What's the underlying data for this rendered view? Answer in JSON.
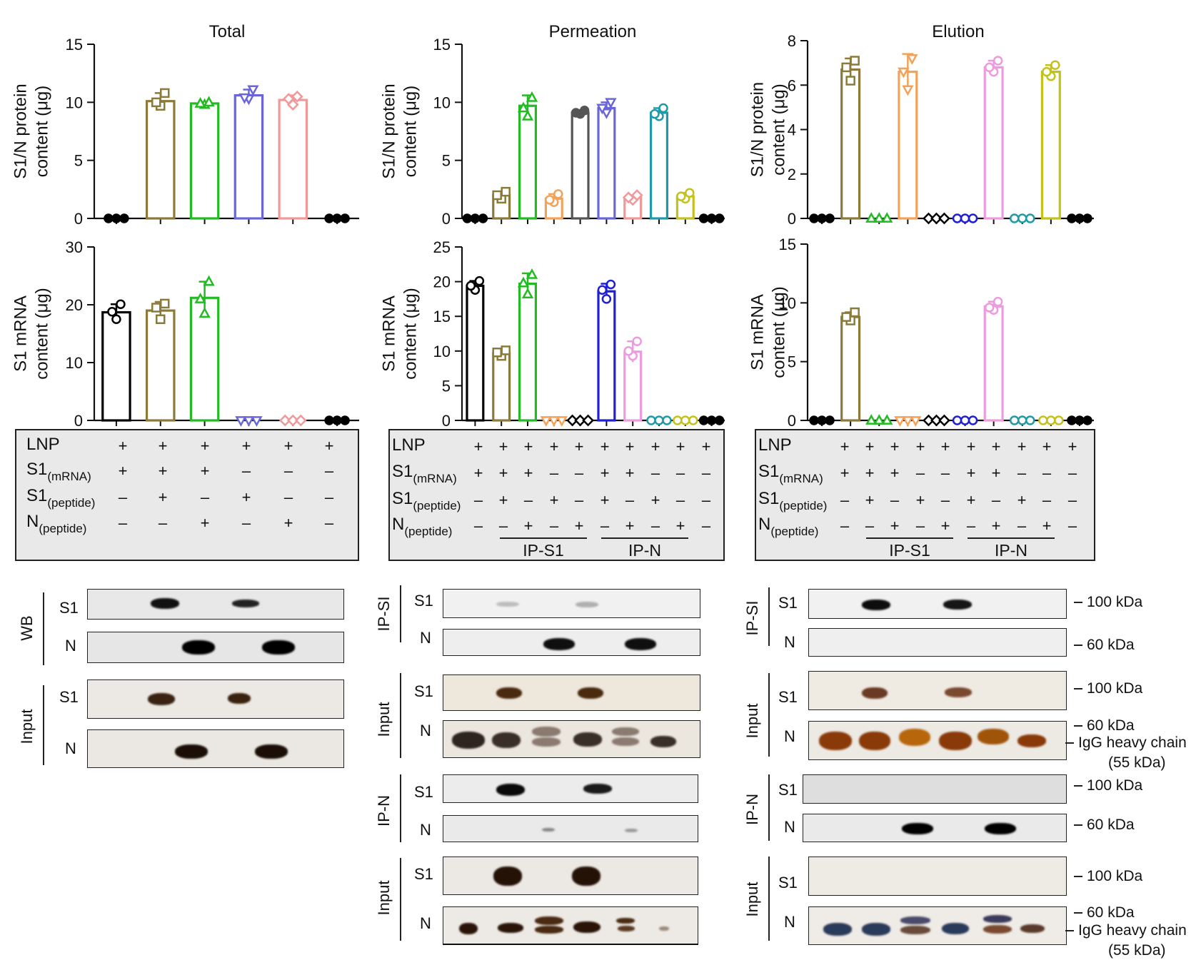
{
  "chart_data": [
    {
      "type": "bar",
      "id": "total-protein",
      "title": "Total",
      "ylabel_lines": [
        "S1/N protein",
        "content (μg)"
      ],
      "ylim": [
        0,
        15
      ],
      "yticks": [
        0,
        5,
        10,
        15
      ],
      "bars": [
        {
          "value": 0,
          "points": [
            0,
            0,
            0
          ],
          "color": "#000000",
          "marker": "circle"
        },
        {
          "value": 10.1,
          "points": [
            9.7,
            10.0,
            10.8
          ],
          "color": "#8b7a3a",
          "marker": "square"
        },
        {
          "value": 9.9,
          "points": [
            9.8,
            9.9,
            10.0
          ],
          "color": "#22bb22",
          "marker": "triangle"
        },
        {
          "value": 10.6,
          "points": [
            10.3,
            10.4,
            11.1
          ],
          "color": "#6a66d8",
          "marker": "triangle-down"
        },
        {
          "value": 10.2,
          "points": [
            9.8,
            10.3,
            10.5
          ],
          "color": "#f19898",
          "marker": "diamond"
        },
        {
          "value": 0,
          "points": [
            0,
            0,
            0
          ],
          "color": "#000000",
          "marker": "circle"
        }
      ]
    },
    {
      "type": "bar",
      "id": "total-mrna",
      "title": "",
      "ylabel_lines": [
        "S1 mRNA",
        "content (μg)"
      ],
      "ylim": [
        0,
        30
      ],
      "yticks": [
        0,
        10,
        20,
        30
      ],
      "bars": [
        {
          "value": 18.7,
          "points": [
            17.5,
            18.8,
            20.1
          ],
          "color": "#000000",
          "marker": "circle"
        },
        {
          "value": 19.0,
          "points": [
            17.5,
            19.5,
            20.2
          ],
          "color": "#8b7a3a",
          "marker": "square"
        },
        {
          "value": 21.2,
          "points": [
            18.5,
            21.0,
            24.0
          ],
          "color": "#22bb22",
          "marker": "triangle"
        },
        {
          "value": 0,
          "points": [
            0,
            0,
            0
          ],
          "color": "#6a66d8",
          "marker": "triangle-down"
        },
        {
          "value": 0,
          "points": [
            0,
            0,
            0
          ],
          "color": "#f19898",
          "marker": "diamond"
        },
        {
          "value": 0,
          "points": [
            0,
            0,
            0
          ],
          "color": "#000000",
          "marker": "circle"
        }
      ]
    },
    {
      "type": "bar",
      "id": "perm-protein",
      "title": "Permeation",
      "ylabel_lines": [
        "S1/N protein",
        "content (μg)"
      ],
      "ylim": [
        0,
        15
      ],
      "yticks": [
        0,
        5,
        10,
        15
      ],
      "bars": [
        {
          "value": 0,
          "points": [
            0,
            0,
            0
          ],
          "color": "#000000",
          "marker": "circle"
        },
        {
          "value": 2.0,
          "points": [
            1.7,
            2.0,
            2.3
          ],
          "color": "#8b7a3a",
          "marker": "square"
        },
        {
          "value": 9.7,
          "points": [
            8.8,
            9.5,
            10.4
          ],
          "color": "#22bb22",
          "marker": "triangle"
        },
        {
          "value": 1.7,
          "points": [
            1.4,
            1.6,
            2.1
          ],
          "color": "#f4a259",
          "marker": "circle"
        },
        {
          "value": 9.1,
          "points": [
            9.0,
            9.1,
            9.3
          ],
          "color": "#555555",
          "marker": "circle-filled"
        },
        {
          "value": 9.5,
          "points": [
            9.1,
            9.5,
            10.0
          ],
          "color": "#6a66d8",
          "marker": "triangle-down"
        },
        {
          "value": 1.8,
          "points": [
            1.6,
            1.8,
            2.0
          ],
          "color": "#f19898",
          "marker": "diamond"
        },
        {
          "value": 9.1,
          "points": [
            8.8,
            9.0,
            9.5
          ],
          "color": "#1f9aa8",
          "marker": "circle"
        },
        {
          "value": 1.9,
          "points": [
            1.7,
            1.9,
            2.2
          ],
          "color": "#c4c21a",
          "marker": "circle"
        },
        {
          "value": 0,
          "points": [
            0,
            0,
            0
          ],
          "color": "#000000",
          "marker": "circle"
        }
      ]
    },
    {
      "type": "bar",
      "id": "perm-mrna",
      "title": "",
      "ylabel_lines": [
        "S1 mRNA",
        "content (μg)"
      ],
      "ylim": [
        0,
        25
      ],
      "yticks": [
        0,
        5,
        10,
        15,
        20,
        25
      ],
      "bars": [
        {
          "value": 19.4,
          "points": [
            18.8,
            19.4,
            20.1
          ],
          "color": "#000000",
          "marker": "circle"
        },
        {
          "value": 9.7,
          "points": [
            9.3,
            9.8,
            10.1
          ],
          "color": "#8b7a3a",
          "marker": "square"
        },
        {
          "value": 19.7,
          "points": [
            18.2,
            19.8,
            21.0
          ],
          "color": "#22bb22",
          "marker": "triangle"
        },
        {
          "value": 0,
          "points": [
            0,
            0,
            0
          ],
          "color": "#f4a259",
          "marker": "triangle-down"
        },
        {
          "value": 0,
          "points": [
            0,
            0,
            0
          ],
          "color": "#000000",
          "marker": "diamond"
        },
        {
          "value": 18.6,
          "points": [
            17.5,
            18.8,
            19.6
          ],
          "color": "#1f1fd6",
          "marker": "circle"
        },
        {
          "value": 9.9,
          "points": [
            9.3,
            10.0,
            11.4
          ],
          "color": "#ee9adf",
          "marker": "circle"
        },
        {
          "value": 0,
          "points": [
            0,
            0,
            0
          ],
          "color": "#1f9aa8",
          "marker": "circle"
        },
        {
          "value": 0,
          "points": [
            0,
            0,
            0
          ],
          "color": "#c4c21a",
          "marker": "circle"
        },
        {
          "value": 0,
          "points": [
            0,
            0,
            0
          ],
          "color": "#000000",
          "marker": "circle"
        }
      ]
    },
    {
      "type": "bar",
      "id": "elution-protein",
      "title": "Elution",
      "ylabel_lines": [
        "S1/N protein",
        "content (μg)"
      ],
      "ylim": [
        0,
        8
      ],
      "yticks": [
        0,
        2,
        4,
        6,
        8
      ],
      "bars": [
        {
          "value": 0,
          "points": [
            0,
            0,
            0
          ],
          "color": "#000000",
          "marker": "circle"
        },
        {
          "value": 6.7,
          "points": [
            6.2,
            6.8,
            7.1
          ],
          "color": "#8b7a3a",
          "marker": "square"
        },
        {
          "value": 0,
          "points": [
            0,
            0,
            0
          ],
          "color": "#22bb22",
          "marker": "triangle"
        },
        {
          "value": 6.6,
          "points": [
            5.8,
            6.6,
            7.2
          ],
          "color": "#f4a259",
          "marker": "triangle-down"
        },
        {
          "value": 0,
          "points": [
            0,
            0,
            0
          ],
          "color": "#000000",
          "marker": "diamond"
        },
        {
          "value": 0,
          "points": [
            0,
            0,
            0
          ],
          "color": "#1f1fd6",
          "marker": "circle"
        },
        {
          "value": 6.8,
          "points": [
            6.6,
            6.8,
            7.1
          ],
          "color": "#ee9adf",
          "marker": "circle"
        },
        {
          "value": 0,
          "points": [
            0,
            0,
            0
          ],
          "color": "#1f9aa8",
          "marker": "circle"
        },
        {
          "value": 6.6,
          "points": [
            6.4,
            6.6,
            6.9
          ],
          "color": "#c4c21a",
          "marker": "circle"
        },
        {
          "value": 0,
          "points": [
            0,
            0,
            0
          ],
          "color": "#000000",
          "marker": "circle"
        }
      ]
    },
    {
      "type": "bar",
      "id": "elution-mrna",
      "title": "",
      "ylabel_lines": [
        "S1 mRNA",
        "content (μg)"
      ],
      "ylim": [
        0,
        15
      ],
      "yticks": [
        0,
        5,
        10,
        15
      ],
      "bars": [
        {
          "value": 0,
          "points": [
            0,
            0,
            0
          ],
          "color": "#000000",
          "marker": "circle"
        },
        {
          "value": 8.8,
          "points": [
            8.5,
            8.8,
            9.2
          ],
          "color": "#8b7a3a",
          "marker": "square"
        },
        {
          "value": 0,
          "points": [
            0,
            0,
            0
          ],
          "color": "#22bb22",
          "marker": "triangle"
        },
        {
          "value": 0,
          "points": [
            0,
            0,
            0
          ],
          "color": "#f4a259",
          "marker": "triangle-down"
        },
        {
          "value": 0,
          "points": [
            0,
            0,
            0
          ],
          "color": "#000000",
          "marker": "diamond"
        },
        {
          "value": 0,
          "points": [
            0,
            0,
            0
          ],
          "color": "#1f1fd6",
          "marker": "circle"
        },
        {
          "value": 9.7,
          "points": [
            9.4,
            9.6,
            10.1
          ],
          "color": "#ee9adf",
          "marker": "circle"
        },
        {
          "value": 0,
          "points": [
            0,
            0,
            0
          ],
          "color": "#1f9aa8",
          "marker": "circle"
        },
        {
          "value": 0,
          "points": [
            0,
            0,
            0
          ],
          "color": "#c4c21a",
          "marker": "circle"
        },
        {
          "value": 0,
          "points": [
            0,
            0,
            0
          ],
          "color": "#000000",
          "marker": "circle"
        }
      ]
    }
  ],
  "conditions": {
    "row_labels": {
      "lnp": "LNP",
      "s1_mrna": {
        "main": "S1",
        "sub": "(mRNA)"
      },
      "s1_peptide": {
        "main": "S1",
        "sub": "(peptide)"
      },
      "n_peptide": {
        "main": "N",
        "sub": "(peptide)"
      }
    },
    "total": [
      [
        "+",
        "+",
        "+",
        "+",
        "+",
        "+"
      ],
      [
        "+",
        "+",
        "+",
        "–",
        "–",
        "–"
      ],
      [
        "–",
        "+",
        "–",
        "+",
        "–",
        "–"
      ],
      [
        "–",
        "–",
        "+",
        "–",
        "+",
        "–"
      ]
    ],
    "ten_lane": [
      [
        "+",
        "+",
        "+",
        "+",
        "+",
        "+",
        "+",
        "+",
        "+",
        "+"
      ],
      [
        "+",
        "+",
        "+",
        "–",
        "–",
        "+",
        "+",
        "–",
        "–",
        "–"
      ],
      [
        "–",
        "+",
        "–",
        "+",
        "–",
        "+",
        "–",
        "+",
        "–",
        "–"
      ],
      [
        "–",
        "–",
        "+",
        "–",
        "+",
        "–",
        "+",
        "–",
        "+",
        "–"
      ]
    ],
    "group_labels": [
      "IP-S1",
      "IP-N"
    ]
  },
  "blots": {
    "labels": {
      "wb": "WB",
      "input": "Input",
      "ip_s1": "IP-SI",
      "ip_n": "IP-N",
      "s1": "S1",
      "n": "N"
    },
    "markers": {
      "kda100": "100 kDa",
      "kda60": "60 kDa",
      "igg_line1": "IgG heavy chain",
      "igg_line2": "(55 kDa)"
    }
  }
}
